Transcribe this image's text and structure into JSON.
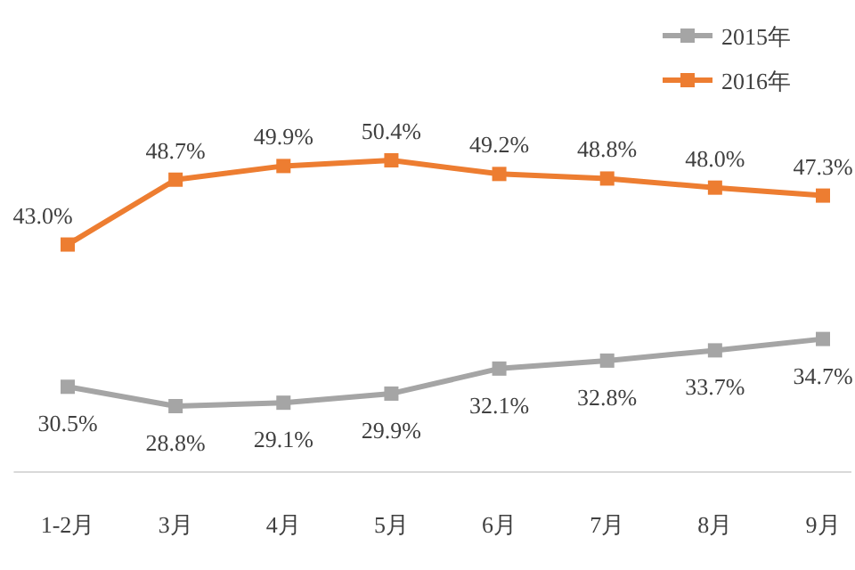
{
  "chart_data": {
    "type": "line",
    "categories": [
      "1-2月",
      "3月",
      "4月",
      "5月",
      "6月",
      "7月",
      "8月",
      "9月"
    ],
    "series": [
      {
        "name": "2015年",
        "color": "#a5a5a5",
        "values": [
          30.5,
          28.8,
          29.1,
          29.9,
          32.1,
          32.8,
          33.7,
          34.7
        ],
        "value_labels": [
          "30.5%",
          "28.8%",
          "29.1%",
          "29.9%",
          "32.1%",
          "32.8%",
          "33.7%",
          "34.7%"
        ]
      },
      {
        "name": "2016年",
        "color": "#ed7d31",
        "values": [
          43.0,
          48.7,
          49.9,
          50.4,
          49.2,
          48.8,
          48.0,
          47.3
        ],
        "value_labels": [
          "43.0%",
          "48.7%",
          "49.9%",
          "50.4%",
          "49.2%",
          "48.8%",
          "48.0%",
          "47.3%"
        ]
      }
    ],
    "marker": "square",
    "legend": "top right"
  }
}
